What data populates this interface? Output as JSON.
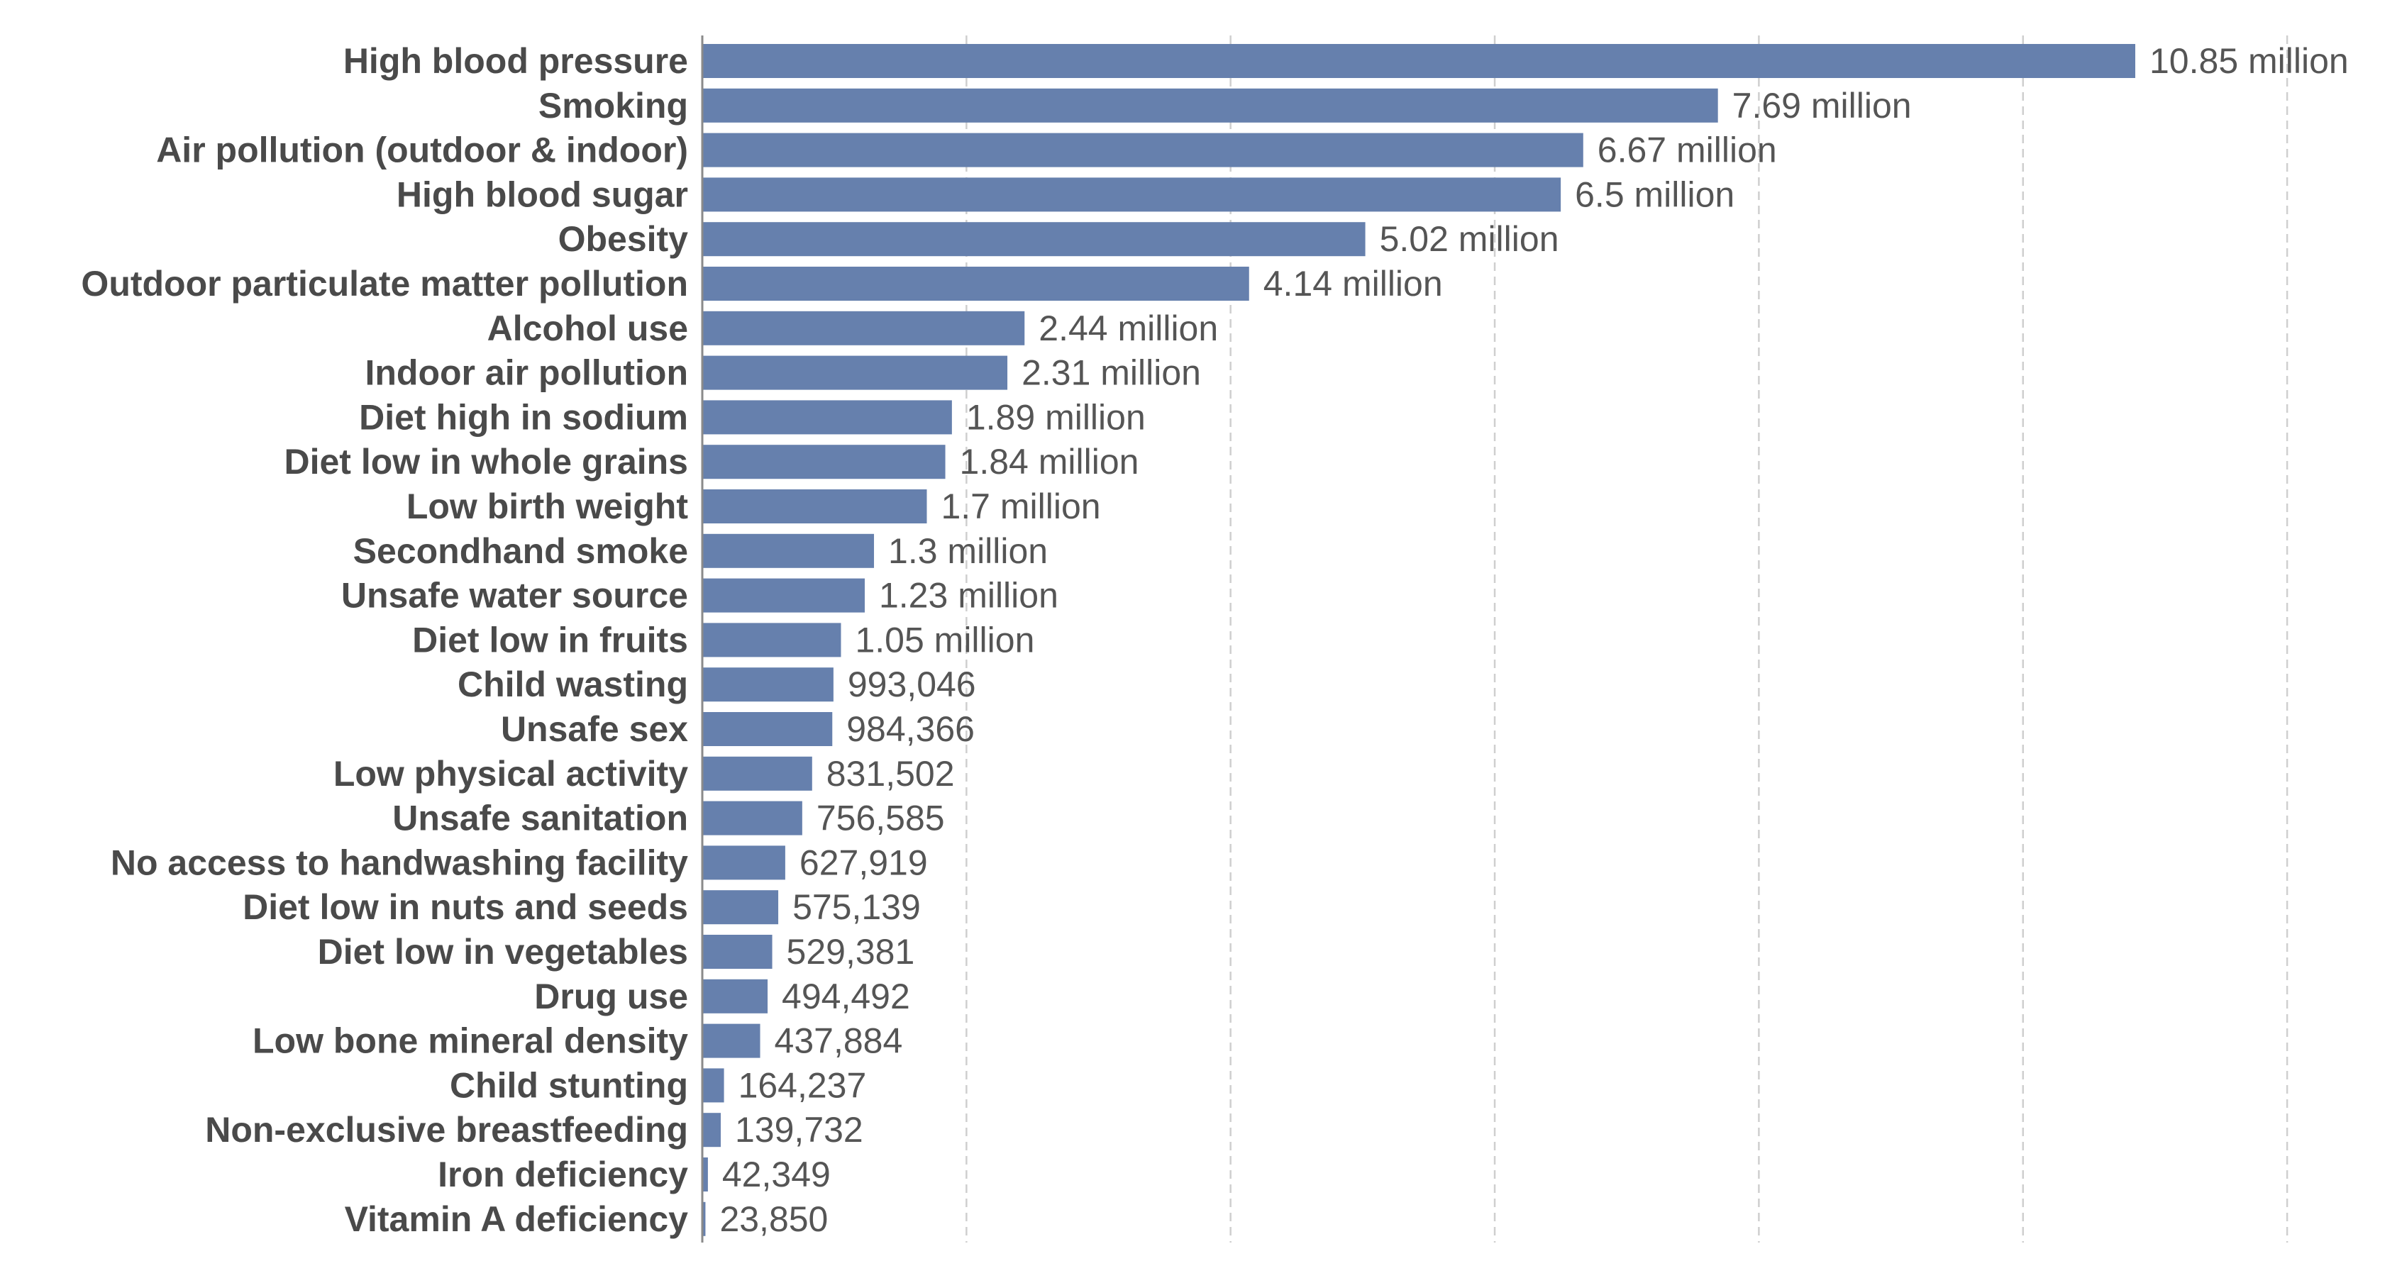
{
  "chart_data": {
    "type": "bar",
    "orientation": "horizontal",
    "categories": [
      "High blood pressure",
      "Smoking",
      "Air pollution (outdoor & indoor)",
      "High blood sugar",
      "Obesity",
      "Outdoor particulate matter pollution",
      "Alcohol use",
      "Indoor air pollution",
      "Diet high in sodium",
      "Diet low in whole grains",
      "Low birth weight",
      "Secondhand smoke",
      "Unsafe water source",
      "Diet low in fruits",
      "Child wasting",
      "Unsafe sex",
      "Low physical activity",
      "Unsafe sanitation",
      "No access to handwashing facility",
      "Diet low in nuts and seeds",
      "Diet low in vegetables",
      "Drug use",
      "Low bone mineral density",
      "Child stunting",
      "Non-exclusive breastfeeding",
      "Iron deficiency",
      "Vitamin A deficiency"
    ],
    "values": [
      10850000,
      7690000,
      6670000,
      6500000,
      5020000,
      4140000,
      2440000,
      2310000,
      1890000,
      1840000,
      1700000,
      1300000,
      1230000,
      1050000,
      993046,
      984366,
      831502,
      756585,
      627919,
      575139,
      529381,
      494492,
      437884,
      164237,
      139732,
      42349,
      23850
    ],
    "value_labels": [
      "10.85 million",
      "7.69 million",
      "6.67 million",
      "6.5 million",
      "5.02 million",
      "4.14 million",
      "2.44 million",
      "2.31 million",
      "1.89 million",
      "1.84 million",
      "1.7 million",
      "1.3 million",
      "1.23 million",
      "1.05 million",
      "993,046",
      "984,366",
      "831,502",
      "756,585",
      "627,919",
      "575,139",
      "529,381",
      "494,492",
      "437,884",
      "164,237",
      "139,732",
      "42,349",
      "23,850"
    ],
    "xlim": [
      0,
      12500000
    ],
    "gridlines_at": [
      2000000,
      4000000,
      6000000,
      8000000,
      10000000,
      12000000
    ],
    "grid": true,
    "bar_color": "#6680ad",
    "title": "",
    "xlabel": "",
    "ylabel": ""
  }
}
